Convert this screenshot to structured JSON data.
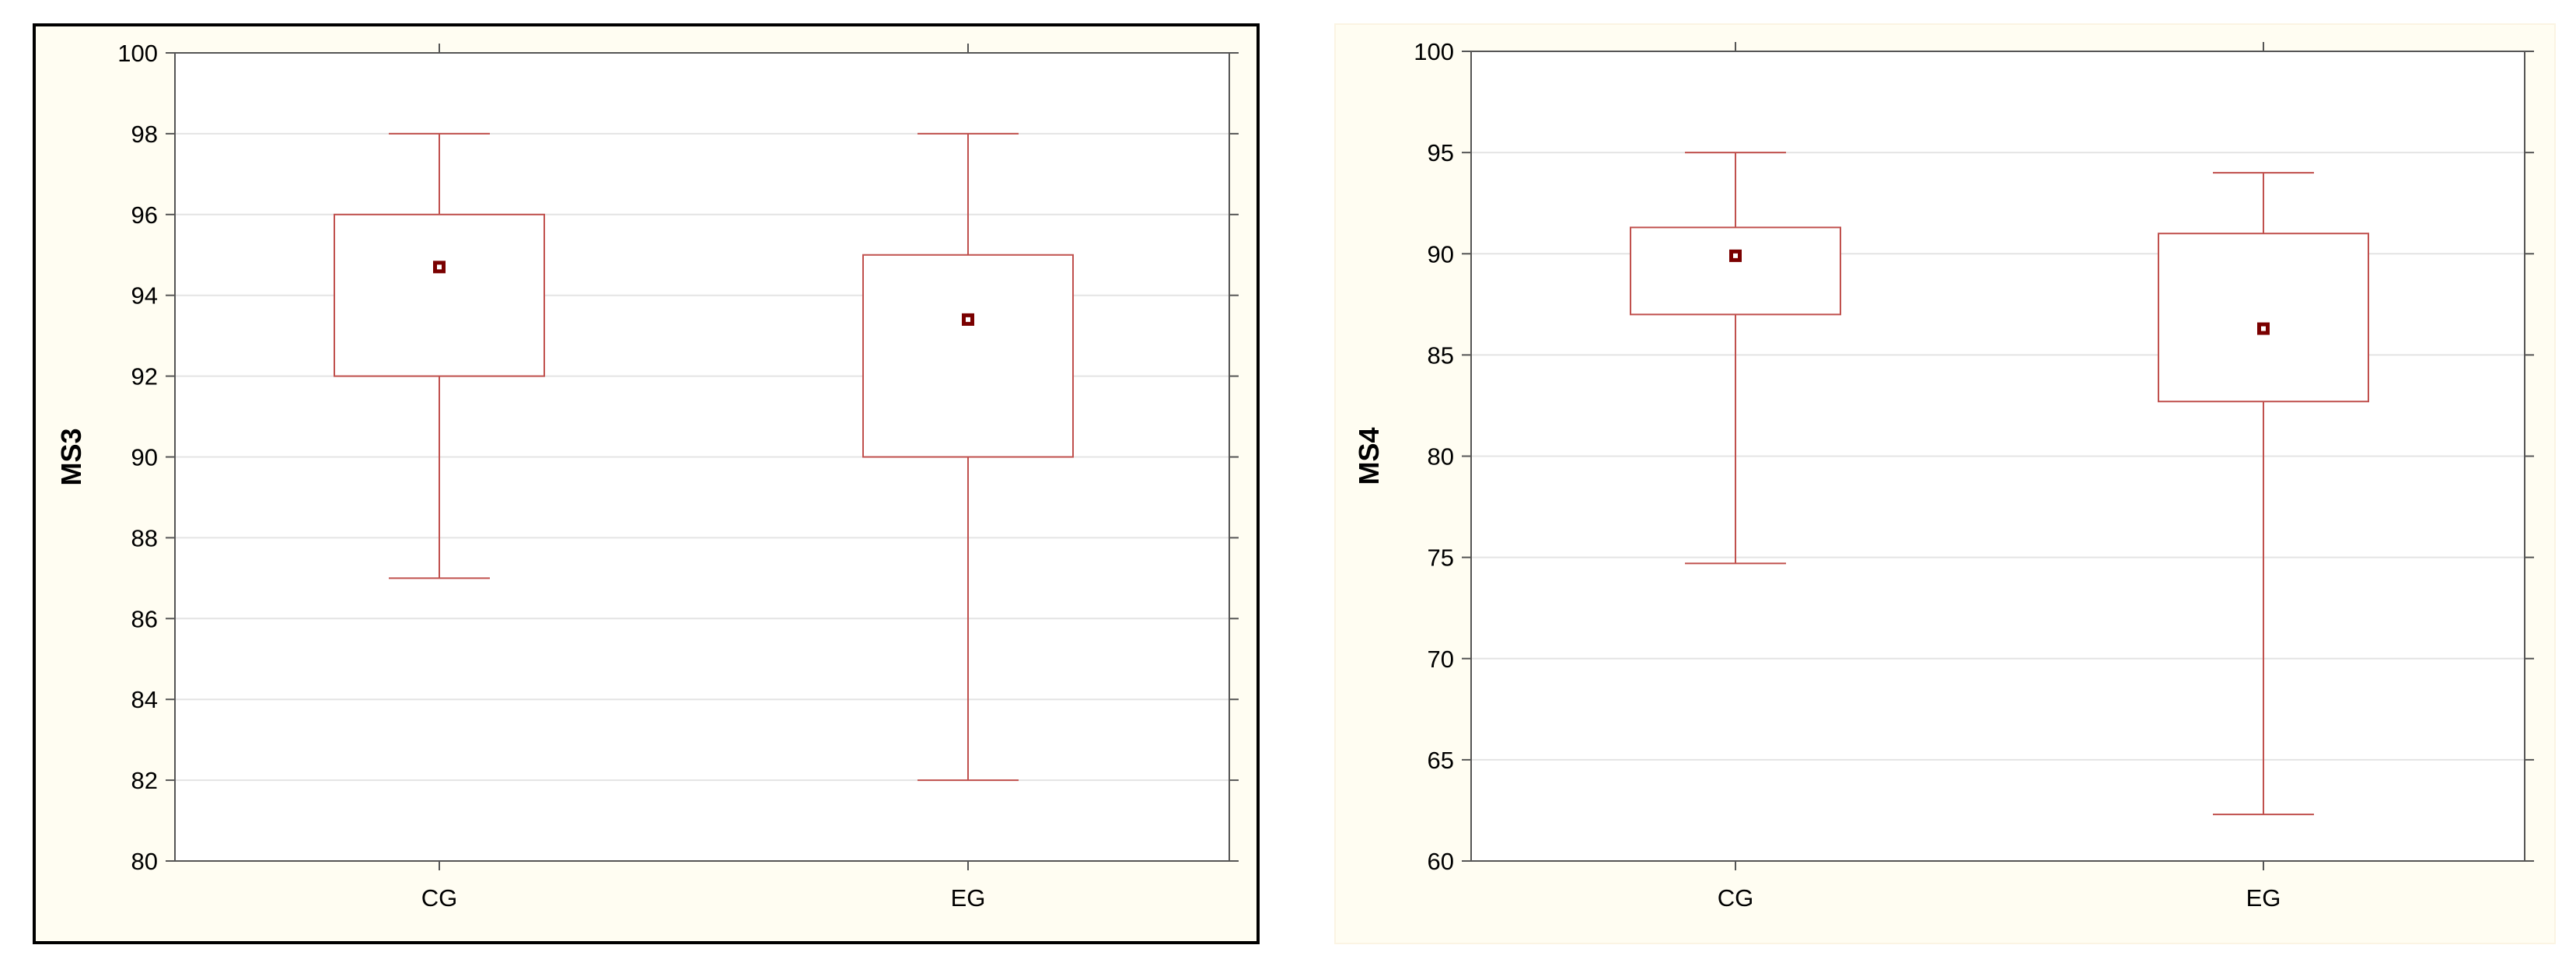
{
  "colors": {
    "box": "#c0504d",
    "mean": "#7a0000",
    "grid": "#e4e4e4",
    "frame": "#555555"
  },
  "chart_data": [
    {
      "type": "box",
      "ylabel": "MS3",
      "xlabel": "",
      "ylim": [
        80,
        100
      ],
      "yticks": [
        80,
        82,
        84,
        86,
        88,
        90,
        92,
        94,
        96,
        98,
        100
      ],
      "grid": true,
      "categories": [
        "CG",
        "EG"
      ],
      "boxes": [
        {
          "category": "CG",
          "whisker_low": 87,
          "q1": 92,
          "mean": 94.7,
          "q3": 96,
          "whisker_high": 98
        },
        {
          "category": "EG",
          "whisker_low": 82,
          "q1": 90,
          "mean": 93.4,
          "q3": 95,
          "whisker_high": 98
        }
      ]
    },
    {
      "type": "box",
      "ylabel": "MS4",
      "xlabel": "",
      "ylim": [
        60,
        100
      ],
      "yticks": [
        60,
        65,
        70,
        75,
        80,
        85,
        90,
        95,
        100
      ],
      "grid": true,
      "categories": [
        "CG",
        "EG"
      ],
      "boxes": [
        {
          "category": "CG",
          "whisker_low": 74.7,
          "q1": 87,
          "mean": 89.9,
          "q3": 91.3,
          "whisker_high": 95
        },
        {
          "category": "EG",
          "whisker_low": 62.3,
          "q1": 82.7,
          "mean": 86.3,
          "q3": 91,
          "whisker_high": 94
        }
      ]
    }
  ]
}
